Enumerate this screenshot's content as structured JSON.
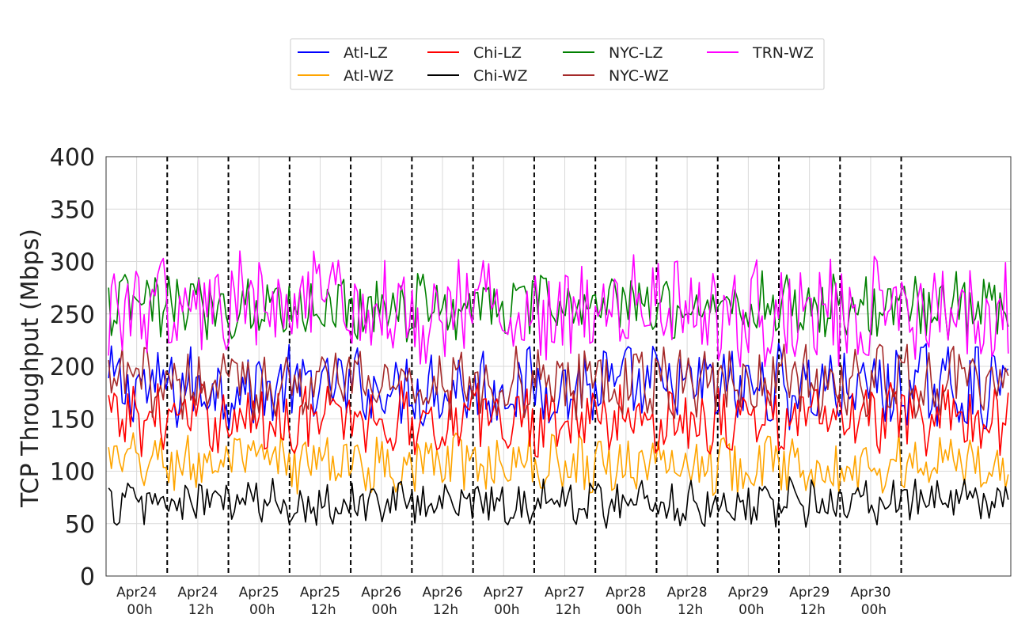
{
  "chart_data": {
    "type": "line",
    "title": "",
    "xlabel": "",
    "ylabel": "TCP Throughput (Mbps)",
    "ylim": [
      0,
      400
    ],
    "yticks": [
      0,
      50,
      100,
      150,
      200,
      250,
      300,
      350,
      400
    ],
    "x_unit": "hours since Apr24 00h",
    "xlim": [
      -6.0,
      171.5
    ],
    "xticks": [
      {
        "x": 0,
        "line1": "Apr24",
        "line2": "00h"
      },
      {
        "x": 12,
        "line1": "Apr24",
        "line2": "12h"
      },
      {
        "x": 24,
        "line1": "Apr25",
        "line2": "00h"
      },
      {
        "x": 36,
        "line1": "Apr25",
        "line2": "12h"
      },
      {
        "x": 48,
        "line1": "Apr26",
        "line2": "00h"
      },
      {
        "x": 60,
        "line1": "Apr26",
        "line2": "12h"
      },
      {
        "x": 72,
        "line1": "Apr27",
        "line2": "00h"
      },
      {
        "x": 84,
        "line1": "Apr27",
        "line2": "12h"
      },
      {
        "x": 96,
        "line1": "Apr28",
        "line2": "00h"
      },
      {
        "x": 108,
        "line1": "Apr28",
        "line2": "12h"
      },
      {
        "x": 120,
        "line1": "Apr29",
        "line2": "00h"
      },
      {
        "x": 132,
        "line1": "Apr29",
        "line2": "12h"
      },
      {
        "x": 144,
        "line1": "Apr30",
        "line2": "00h"
      }
    ],
    "vlines_dashed": [
      6,
      18,
      30,
      42,
      54,
      66,
      78,
      90,
      102,
      114,
      126,
      138,
      150
    ],
    "grid": true,
    "legend_position": "top-center",
    "series": [
      {
        "name": "Atl-LZ",
        "color": "#0000ff",
        "baseline": 180,
        "jitter": 35
      },
      {
        "name": "Atl-WZ",
        "color": "#ffa500",
        "baseline": 108,
        "jitter": 25
      },
      {
        "name": "Chi-LZ",
        "color": "#ff0000",
        "baseline": 150,
        "jitter": 30
      },
      {
        "name": "Chi-WZ",
        "color": "#000000",
        "baseline": 70,
        "jitter": 20
      },
      {
        "name": "NYC-LZ",
        "color": "#008000",
        "baseline": 258,
        "jitter": 28
      },
      {
        "name": "NYC-WZ",
        "color": "#a52a2a",
        "baseline": 185,
        "jitter": 30
      },
      {
        "name": "TRN-WZ",
        "color": "#ff00ff",
        "baseline": 255,
        "jitter": 45
      }
    ]
  }
}
